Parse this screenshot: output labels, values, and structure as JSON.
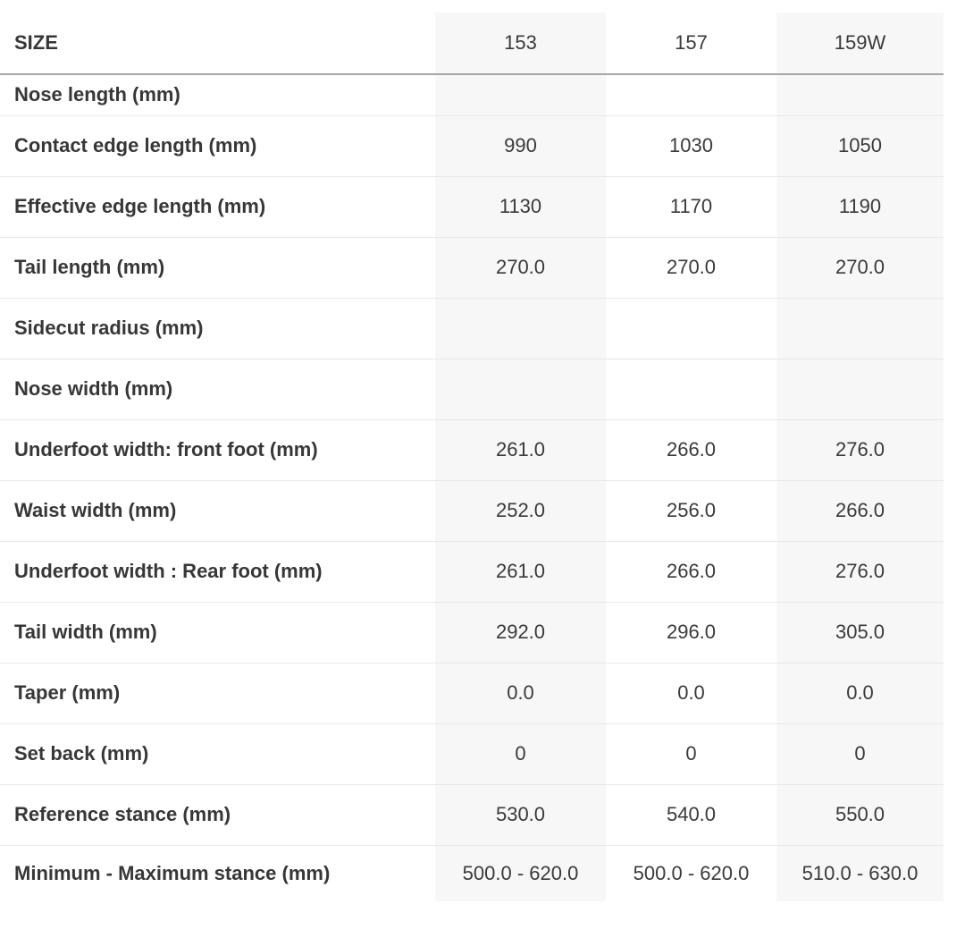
{
  "table": {
    "header": {
      "label": "SIZE",
      "columns": [
        "153",
        "157",
        "159W"
      ]
    },
    "rows": [
      {
        "label": "Nose length (mm)",
        "values": [
          "",
          "",
          ""
        ]
      },
      {
        "label": "Contact edge length (mm)",
        "values": [
          "990",
          "1030",
          "1050"
        ]
      },
      {
        "label": "Effective edge length (mm)",
        "values": [
          "1130",
          "1170",
          "1190"
        ]
      },
      {
        "label": "Tail length (mm)",
        "values": [
          "270.0",
          "270.0",
          "270.0"
        ]
      },
      {
        "label": "Sidecut radius (mm)",
        "values": [
          "",
          "",
          ""
        ]
      },
      {
        "label": "Nose width (mm)",
        "values": [
          "",
          "",
          ""
        ]
      },
      {
        "label": "Underfoot width: front foot (mm)",
        "values": [
          "261.0",
          "266.0",
          "276.0"
        ]
      },
      {
        "label": "Waist width (mm)",
        "values": [
          "252.0",
          "256.0",
          "266.0"
        ]
      },
      {
        "label": "Underfoot width : Rear foot (mm)",
        "values": [
          "261.0",
          "266.0",
          "276.0"
        ]
      },
      {
        "label": "Tail width (mm)",
        "values": [
          "292.0",
          "296.0",
          "305.0"
        ]
      },
      {
        "label": "Taper (mm)",
        "values": [
          "0.0",
          "0.0",
          "0.0"
        ]
      },
      {
        "label": "Set back (mm)",
        "values": [
          "0",
          "0",
          "0"
        ]
      },
      {
        "label": "Reference stance (mm)",
        "values": [
          "530.0",
          "540.0",
          "550.0"
        ]
      },
      {
        "label": "Minimum - Maximum stance (mm)",
        "values": [
          "500.0 - 620.0",
          "500.0 - 620.0",
          "510.0 - 630.0"
        ]
      }
    ],
    "colors": {
      "column_shade": "#f7f7f7",
      "row_border": "#e8e8e8",
      "header_border": "#a6a6a6",
      "text": "#3a3a3a"
    }
  }
}
